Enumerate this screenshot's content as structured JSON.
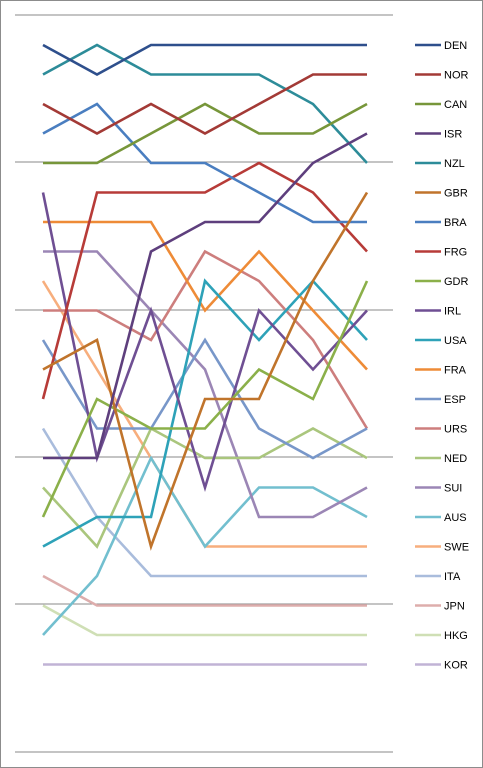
{
  "chart_data": {
    "type": "line",
    "x": [
      1,
      2,
      3,
      4,
      5,
      6,
      7
    ],
    "ylim": [
      1,
      22
    ],
    "y_reversed": true,
    "grid": true,
    "legend_position": "right",
    "series": [
      {
        "name": "DEN",
        "color": "#2e4f8c",
        "values": [
          1,
          2,
          1,
          1,
          1,
          1,
          1
        ]
      },
      {
        "name": "NOR",
        "color": "#a33a36",
        "values": [
          3,
          4,
          3,
          4,
          3,
          2,
          2
        ]
      },
      {
        "name": "CAN",
        "color": "#77963a",
        "values": [
          5,
          5,
          4,
          3,
          4,
          4,
          3
        ]
      },
      {
        "name": "ISR",
        "color": "#5e3f7d",
        "values": [
          15,
          15,
          8,
          7,
          7,
          5,
          4
        ]
      },
      {
        "name": "NZL",
        "color": "#2d8c99",
        "values": [
          2,
          1,
          2,
          2,
          2,
          3,
          5
        ]
      },
      {
        "name": "GBR",
        "color": "#c0742b",
        "values": [
          12,
          11,
          18,
          13,
          13,
          9,
          6
        ]
      },
      {
        "name": "BRA",
        "color": "#4a7ec0",
        "values": [
          4,
          3,
          5,
          5,
          6,
          7,
          7
        ]
      },
      {
        "name": "FRG",
        "color": "#b73b38",
        "values": [
          13,
          6,
          6,
          6,
          5,
          6,
          8
        ]
      },
      {
        "name": "GDR",
        "color": "#8bb04a",
        "values": [
          17,
          13,
          14,
          14,
          12,
          13,
          9
        ]
      },
      {
        "name": "IRL",
        "color": "#6f4f93",
        "values": [
          6,
          15,
          10,
          16,
          10,
          12,
          10
        ]
      },
      {
        "name": "USA",
        "color": "#2ea2b8",
        "values": [
          18,
          17,
          17,
          9,
          11,
          9,
          11
        ]
      },
      {
        "name": "FRA",
        "color": "#ee8b37",
        "values": [
          7,
          7,
          7,
          10,
          8,
          10,
          12
        ]
      },
      {
        "name": "ESP",
        "color": "#7897c9",
        "values": [
          11,
          14,
          14,
          11,
          14,
          15,
          14
        ]
      },
      {
        "name": "URS",
        "color": "#cd7e7d",
        "values": [
          10,
          10,
          11,
          8,
          9,
          11,
          14
        ]
      },
      {
        "name": "NED",
        "color": "#aac67d",
        "values": [
          16,
          18,
          14,
          15,
          15,
          14,
          15
        ]
      },
      {
        "name": "SUI",
        "color": "#9b86b5",
        "values": [
          8,
          8,
          10,
          12,
          17,
          17,
          16
        ]
      },
      {
        "name": "AUS",
        "color": "#72bfcf",
        "values": [
          21,
          19,
          15,
          18,
          16,
          16,
          17
        ]
      },
      {
        "name": "SWE",
        "color": "#f7ae7d",
        "values": [
          9,
          12,
          15,
          18,
          18,
          18,
          18
        ]
      },
      {
        "name": "ITA",
        "color": "#a9bcdc",
        "values": [
          14,
          17,
          19,
          19,
          19,
          19,
          19
        ]
      },
      {
        "name": "JPN",
        "color": "#ddadac",
        "values": [
          19,
          20,
          20,
          20,
          20,
          20,
          20
        ]
      },
      {
        "name": "HKG",
        "color": "#cfdfb5",
        "values": [
          20,
          21,
          21,
          21,
          21,
          21,
          21
        ]
      },
      {
        "name": "KOR",
        "color": "#c1b3d5",
        "values": [
          22,
          22,
          22,
          22,
          22,
          22,
          22
        ]
      }
    ]
  }
}
